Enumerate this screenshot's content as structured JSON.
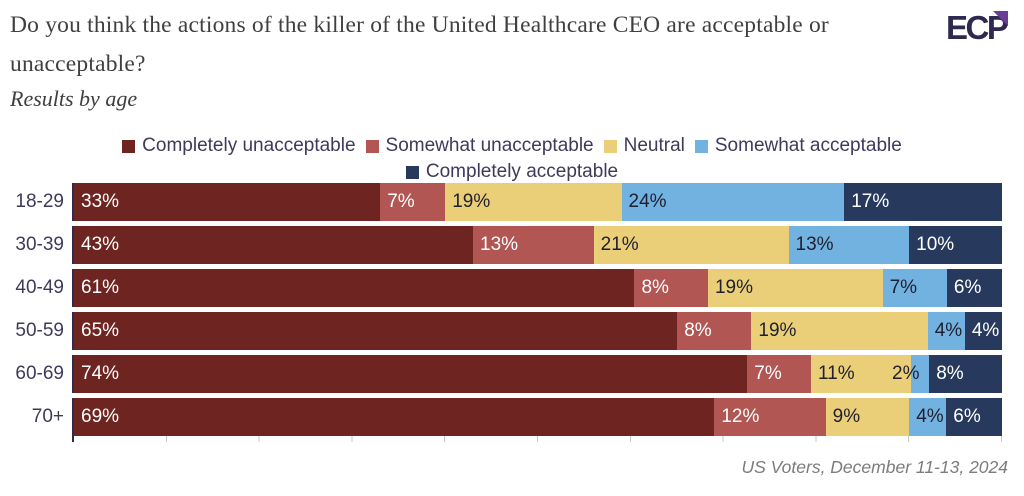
{
  "header": {
    "title": "Do you think the actions of the killer of the United Healthcare CEO are acceptable or unacceptable?",
    "subtitle": "Results by age",
    "logo_text": "ECP"
  },
  "chart_data": {
    "type": "bar",
    "orientation": "horizontal-stacked",
    "title": "Do you think the actions of the killer of the United Healthcare CEO are acceptable or unacceptable?",
    "subtitle": "Results by age",
    "categories": [
      "18-29",
      "30-39",
      "40-49",
      "50-59",
      "60-69",
      "70+"
    ],
    "series": [
      {
        "name": "Completely unacceptable",
        "color": "#6e2521",
        "label_color": "#ffffff",
        "values": [
          33,
          43,
          61,
          65,
          74,
          69
        ]
      },
      {
        "name": "Somewhat unacceptable",
        "color": "#b15653",
        "label_color": "#ffffff",
        "values": [
          7,
          13,
          8,
          8,
          7,
          12
        ]
      },
      {
        "name": "Neutral",
        "color": "#eacf78",
        "label_color": "#1f1f2e",
        "values": [
          19,
          21,
          19,
          19,
          11,
          9
        ]
      },
      {
        "name": "Somewhat acceptable",
        "color": "#72b2e1",
        "label_color": "#1f1f2e",
        "values": [
          24,
          13,
          7,
          4,
          2,
          4
        ]
      },
      {
        "name": "Completely acceptable",
        "color": "#273a5d",
        "label_color": "#ffffff",
        "values": [
          17,
          10,
          6,
          4,
          8,
          6
        ]
      }
    ],
    "legend_rows": [
      [
        "Completely unacceptable",
        "Somewhat unacceptable",
        "Neutral",
        "Somewhat acceptable"
      ],
      [
        "Completely acceptable"
      ]
    ],
    "value_suffix": "%",
    "xlim": [
      0,
      100
    ],
    "gridline_interval": 10,
    "grid": true,
    "legend_position": "top-center"
  },
  "footer": {
    "source": "US Voters, December 11-13, 2024"
  }
}
